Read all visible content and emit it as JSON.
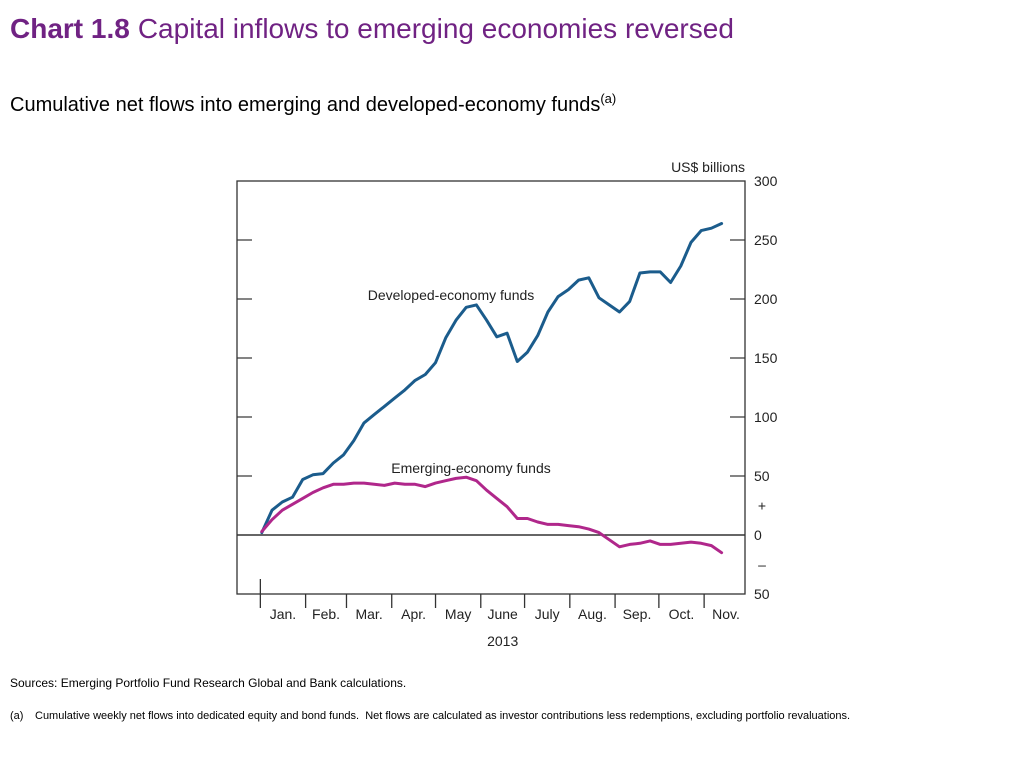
{
  "title": {
    "number": "Chart 1.8",
    "text": "Capital inflows to emerging economies reversed"
  },
  "subtitle": {
    "text": "Cumulative net flows into emerging and developed-economy funds",
    "note_marker": "(a)"
  },
  "colors": {
    "title": "#702283",
    "axis": "#333333"
  },
  "chart_data": {
    "type": "line",
    "ylabel": "US$ billions",
    "xlabel": "2013",
    "x_tick_labels": [
      "Jan.",
      "Feb.",
      "Mar.",
      "Apr.",
      "May",
      "June",
      "July",
      "Aug.",
      "Sep.",
      "Oct.",
      "Nov."
    ],
    "xlim": [
      "2012-12-16",
      "2013-11-29"
    ],
    "ylim": [
      -50,
      300
    ],
    "y_ticks": [
      -50,
      0,
      50,
      100,
      150,
      200,
      250,
      300
    ],
    "y_tick_labels": [
      "50",
      "0",
      "50",
      "100",
      "150",
      "200",
      "250",
      "300"
    ],
    "positive_marker": "+",
    "negative_marker": "–",
    "grid": false,
    "legend": "inline labels",
    "x": [
      "2013-01-02",
      "2013-01-09",
      "2013-01-16",
      "2013-01-23",
      "2013-01-30",
      "2013-02-06",
      "2013-02-13",
      "2013-02-20",
      "2013-02-27",
      "2013-03-06",
      "2013-03-13",
      "2013-03-20",
      "2013-03-27",
      "2013-04-03",
      "2013-04-10",
      "2013-04-17",
      "2013-04-24",
      "2013-05-01",
      "2013-05-08",
      "2013-05-15",
      "2013-05-22",
      "2013-05-29",
      "2013-06-05",
      "2013-06-12",
      "2013-06-19",
      "2013-06-26",
      "2013-07-03",
      "2013-07-10",
      "2013-07-17",
      "2013-07-24",
      "2013-07-31",
      "2013-08-07",
      "2013-08-14",
      "2013-08-21",
      "2013-08-28",
      "2013-09-04",
      "2013-09-11",
      "2013-09-18",
      "2013-09-25",
      "2013-10-02",
      "2013-10-09",
      "2013-10-16",
      "2013-10-23",
      "2013-10-30",
      "2013-11-06",
      "2013-11-13"
    ],
    "series": [
      {
        "name": "Developed-economy funds",
        "color": "#1b5c8c",
        "values": [
          2,
          21,
          28,
          32,
          47,
          51,
          52,
          61,
          68,
          80,
          95,
          102,
          109,
          116,
          123,
          131,
          136,
          146,
          167,
          182,
          193,
          195,
          182,
          168,
          171,
          147,
          155,
          169,
          189,
          202,
          208,
          216,
          218,
          201,
          195,
          189,
          198,
          222,
          223,
          223,
          214,
          228,
          248,
          258,
          260,
          264
        ]
      },
      {
        "name": "Emerging-economy funds",
        "color": "#b0278b",
        "values": [
          3,
          13,
          21,
          26,
          31,
          36,
          40,
          43,
          43,
          44,
          44,
          43,
          42,
          44,
          43,
          43,
          41,
          44,
          46,
          48,
          49,
          46,
          38,
          31,
          24,
          14,
          14,
          11,
          9,
          9,
          8,
          7,
          5,
          2,
          -4,
          -10,
          -8,
          -7,
          -5,
          -8,
          -8,
          -7,
          -6,
          -7,
          -9,
          -15
        ]
      }
    ]
  },
  "sources": "Sources: Emerging Portfolio Fund Research Global and Bank calculations.",
  "footnote": {
    "marker": "(a)",
    "text": "Cumulative weekly net flows into dedicated equity and bond funds.  Net flows are calculated as investor contributions less redemptions, excluding portfolio revaluations."
  }
}
